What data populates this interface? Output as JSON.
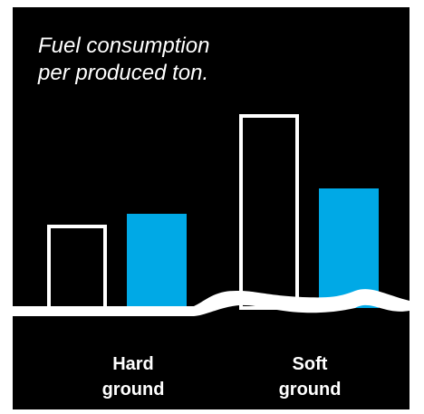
{
  "chart_data": {
    "type": "bar",
    "title": "Fuel consumption\nper produced ton.",
    "categories": [
      "Hard\nground",
      "Soft\nground"
    ],
    "series": [
      {
        "values": [
          78,
          200
        ]
      },
      {
        "values": [
          92,
          120
        ]
      }
    ],
    "ylim": [
      0,
      200
    ],
    "grid": false,
    "legend": "none",
    "colors": {
      "background": "#000000",
      "outline_bar": "#ffffff",
      "fill_bar": "#00a9e6",
      "ground": "#ffffff",
      "text": "#ffffff"
    }
  }
}
